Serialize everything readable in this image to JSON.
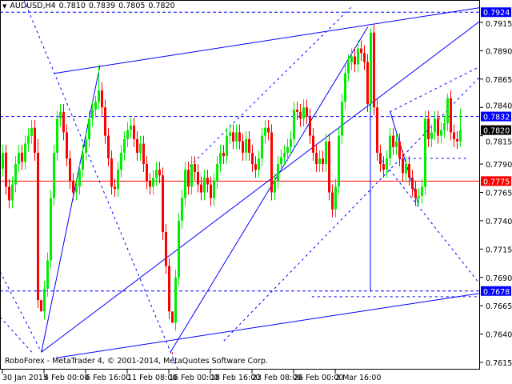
{
  "header": {
    "symbol_icon": "triangle-down-icon",
    "symbol": "AUDUSD,H4",
    "open": "0.7810",
    "high": "0.7839",
    "low": "0.7805",
    "close": "0.7820"
  },
  "copyright": "RoboForex - MetaTrader 4, © 2001-2014, MetaQuotes Software Corp.",
  "colors": {
    "bull": "#00ee00",
    "bear": "#ff0000",
    "lines": "#0000ff",
    "support": "#ff0000",
    "axis": "#000000"
  },
  "chart_data": {
    "type": "candlestick",
    "symbol": "AUDUSD",
    "timeframe": "H4",
    "ylim": [
      0.76,
      0.7942
    ],
    "y_ticks": [
      "0.7915",
      "0.7890",
      "0.7865",
      "0.7840",
      "0.7815",
      "0.7790",
      "0.7765",
      "0.7740",
      "0.7715",
      "0.7690",
      "0.7665",
      "0.7640",
      "0.7615"
    ],
    "x_tick_labels": [
      "30 Jan 2015",
      "4 Feb 00:00",
      "6 Feb 16:00",
      "11 Feb 08:00",
      "16 Feb 00:00",
      "18 Feb 16:00",
      "23 Feb 08:00",
      "26 Feb 00:00",
      "2 Mar 16:00"
    ],
    "x_tick_bar_index": [
      0,
      13,
      26,
      39,
      52,
      65,
      78,
      91,
      104
    ],
    "first_open": 0.7786,
    "closes": [
      0.78,
      0.777,
      0.7758,
      0.7772,
      0.779,
      0.78,
      0.7792,
      0.7808,
      0.7815,
      0.7822,
      0.78,
      0.767,
      0.766,
      0.768,
      0.7705,
      0.776,
      0.78,
      0.783,
      0.7836,
      0.7818,
      0.7795,
      0.7775,
      0.7765,
      0.777,
      0.7785,
      0.78,
      0.7812,
      0.783,
      0.7838,
      0.7845,
      0.7855,
      0.784,
      0.7815,
      0.7795,
      0.777,
      0.7768,
      0.7785,
      0.78,
      0.7812,
      0.782,
      0.7824,
      0.7812,
      0.78,
      0.7808,
      0.779,
      0.7775,
      0.777,
      0.7778,
      0.7785,
      0.778,
      0.773,
      0.77,
      0.766,
      0.765,
      0.769,
      0.774,
      0.776,
      0.7785,
      0.777,
      0.779,
      0.7783,
      0.7772,
      0.7765,
      0.7778,
      0.7772,
      0.776,
      0.7775,
      0.779,
      0.78,
      0.7797,
      0.7815,
      0.7818,
      0.781,
      0.7818,
      0.781,
      0.78,
      0.7812,
      0.78,
      0.779,
      0.7785,
      0.7795,
      0.7815,
      0.7822,
      0.7818,
      0.7765,
      0.7775,
      0.779,
      0.7796,
      0.78,
      0.7805,
      0.7812,
      0.7838,
      0.7836,
      0.783,
      0.784,
      0.7832,
      0.7815,
      0.78,
      0.779,
      0.7795,
      0.779,
      0.781,
      0.7765,
      0.775,
      0.777,
      0.7815,
      0.7845,
      0.787,
      0.788,
      0.7885,
      0.7878,
      0.7892,
      0.7888,
      0.788,
      0.7843,
      0.7906,
      0.784,
      0.78,
      0.779,
      0.7785,
      0.7795,
      0.7815,
      0.7805,
      0.781,
      0.7795,
      0.7782,
      0.779,
      0.7778,
      0.7768,
      0.776,
      0.7762,
      0.777,
      0.783,
      0.7812,
      0.7818,
      0.783,
      0.7815,
      0.782,
      0.7826,
      0.7848,
      0.7818,
      0.7812,
      0.781,
      0.782
    ],
    "highs": {
      "11": 0.7812,
      "12": 0.7626,
      "29": 0.785,
      "30": 0.7877,
      "53": 0.7624,
      "115": 0.791,
      "139": 0.7852,
      "143": 0.7839
    },
    "lows": {
      "12": 0.7624,
      "53": 0.7622,
      "143": 0.7805
    },
    "horizontal_levels": [
      {
        "price": "0.7924",
        "style": "dashed",
        "color": "#0000ff",
        "label_bg": "#0000ff"
      },
      {
        "price": "0.7832",
        "style": "dashed",
        "color": "#0000ff",
        "label_bg": "#0000ff"
      },
      {
        "price": "0.7820",
        "style": "none",
        "color": "#000000",
        "label_bg": "#000000"
      },
      {
        "price": "0.7775",
        "style": "solid",
        "color": "#ff0000",
        "label_bg": "#ff0000"
      },
      {
        "price": "0.7678",
        "style": "dashed",
        "color": "#0000ff",
        "label_bg": "#0000ff"
      }
    ],
    "trendlines": [
      {
        "from": [
          12.2,
          0.7624
        ],
        "to": [
          30.5,
          0.7877
        ],
        "style": "solid"
      },
      {
        "from": [
          16.2,
          0.787
        ],
        "to": [
          149.2,
          0.7928
        ],
        "style": "solid"
      },
      {
        "from": [
          16.7,
          0.7619
        ],
        "to": [
          149.2,
          0.7676
        ],
        "style": "solid"
      },
      {
        "from": [
          12.2,
          0.7624
        ],
        "to": [
          149.2,
          0.7916
        ],
        "style": "solid"
      },
      {
        "from": [
          52.5,
          0.7624
        ],
        "to": [
          114.2,
          0.7911
        ],
        "style": "solid"
      },
      {
        "from": [
          121.2,
          0.7836
        ],
        "to": [
          130.0,
          0.7755
        ],
        "style": "solid"
      },
      {
        "from": [
          6.7,
          0.7935
        ],
        "to": [
          56.7,
          0.7596
        ],
        "style": "dashed"
      },
      {
        "from": [
          -0.7,
          0.7695
        ],
        "to": [
          12.2,
          0.7624
        ],
        "style": "dashed"
      },
      {
        "from": [
          -0.7,
          0.7655
        ],
        "to": [
          9.2,
          0.7624
        ],
        "style": "dashed"
      },
      {
        "from": [
          58.5,
          0.7788
        ],
        "to": [
          109.2,
          0.7929
        ],
        "style": "dashed"
      },
      {
        "from": [
          69.2,
          0.7634
        ],
        "to": [
          149.2,
          0.7867
        ],
        "style": "dashed"
      },
      {
        "from": [
          121.0,
          0.7836
        ],
        "to": [
          149.2,
          0.7876
        ],
        "style": "dashed"
      },
      {
        "from": [
          118.7,
          0.7793
        ],
        "to": [
          148.7,
          0.7686
        ],
        "style": "dashed"
      },
      {
        "from": [
          96.7,
          0.7673
        ],
        "to": [
          149.2,
          0.7673
        ],
        "style": "dashed"
      },
      {
        "from": [
          126.7,
          0.7795
        ],
        "to": [
          145.5,
          0.7795
        ],
        "style": "dashed"
      }
    ],
    "vertical_lines": [
      {
        "bar": 115,
        "from": 0.7906,
        "to": 0.7678
      }
    ]
  }
}
